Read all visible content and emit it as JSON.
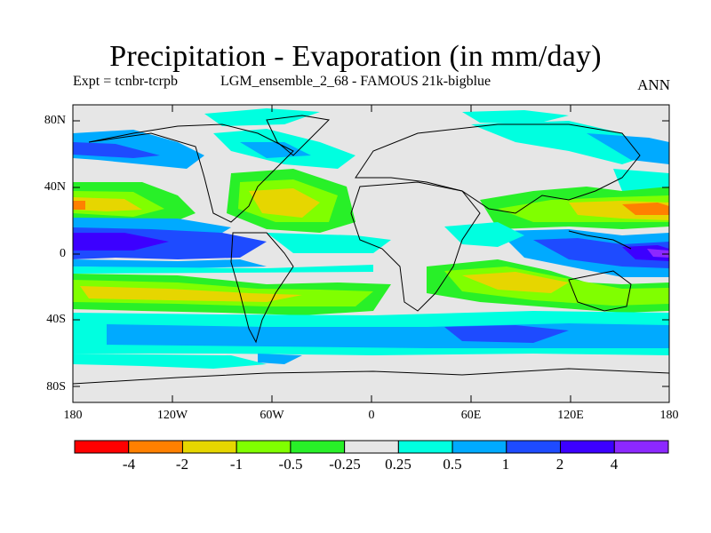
{
  "title": "Precipitation - Evaporation (in mm/day)",
  "subtitle_left": "Expt = tcnbr-tcrpb",
  "subtitle_center": "LGM_ensemble_2_68 - FAMOUS 21k-bigblue",
  "season": "ANN",
  "y_ticks": [
    "80N",
    "40N",
    "0",
    "40S",
    "80S"
  ],
  "x_ticks": [
    "180",
    "120W",
    "60W",
    "0",
    "60E",
    "120E",
    "180"
  ],
  "colorbar": {
    "colors": [
      "#ff0000",
      "#ff8000",
      "#e6d600",
      "#80ff00",
      "#28f028",
      "#e6e6e6",
      "#00ffe0",
      "#00aaff",
      "#1e4bff",
      "#3c00ff",
      "#8c28ff"
    ],
    "labels": [
      "-4",
      "-2",
      "-1",
      "-0.5",
      "-0.25",
      "0.25",
      "0.5",
      "1",
      "2",
      "4"
    ]
  },
  "map_colors": {
    "background": "#e6e6e6",
    "land_outline": "#000000"
  }
}
